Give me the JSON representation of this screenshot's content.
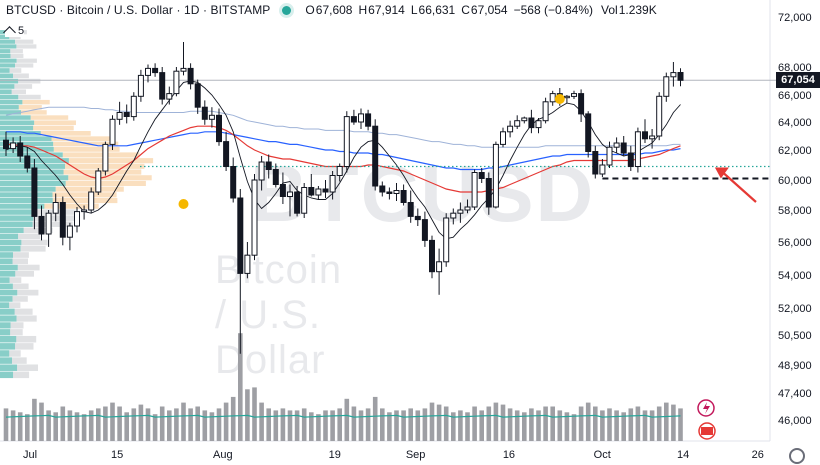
{
  "header": {
    "symbol": "BTCUSD · Bitcoin / U.S. Dollar · 1D · BITSTAMP",
    "o_label": "O",
    "o_value": "67,608",
    "h_label": "H",
    "h_value": "67,914",
    "l_label": "L",
    "l_value": "66,631",
    "c_label": "C",
    "c_value": "67,054",
    "change": "−568 (−0.84%)",
    "vol_label": "Vol",
    "vol_value": "1.239K"
  },
  "indicators_toggle": {
    "count": "5"
  },
  "watermark": {
    "symbol": "BTCUSD",
    "name": "Bitcoin / U.S. Dollar"
  },
  "last_price_label": "67,054",
  "colors": {
    "up": "#ffffff",
    "up_border": "#131722",
    "down": "#131722",
    "volume": "#9e9fa4",
    "ma_blue": "#2962ff",
    "ma_red": "#e53935",
    "ma_light": "#9fb3d8",
    "ma_black": "#131722",
    "vp_teal": "#26a69a",
    "vp_orange": "#f5c48a",
    "arrow": "#e53935",
    "volume_ma": "#26a69a"
  },
  "chart_data": {
    "type": "candlestick",
    "title": "BTCUSD · Bitcoin / U.S. Dollar · 1D · BITSTAMP",
    "ylim": [
      45000,
      73500
    ],
    "y_ticks": [
      72000,
      68000,
      66000,
      64000,
      62000,
      60000,
      58000,
      56000,
      54000,
      52000,
      50500,
      48900,
      47400,
      46000
    ],
    "y_tick_labels": [
      "72,000",
      "68,000",
      "66,000",
      "64,000",
      "62,000",
      "60,000",
      "58,000",
      "56,000",
      "54,000",
      "52,000",
      "50,500",
      "48,900",
      "47,400",
      "46,000"
    ],
    "x_tick_labels": [
      {
        "label": "Jul",
        "day": 1
      },
      {
        "label": "15",
        "day": 15
      },
      {
        "label": "Aug",
        "day": 32
      },
      {
        "label": "19",
        "day": 50
      },
      {
        "label": "Sep",
        "day": 63
      },
      {
        "label": "16",
        "day": 78
      },
      {
        "label": "Oct",
        "day": 93
      },
      {
        "label": "14",
        "day": 106
      },
      {
        "label": "26",
        "day": 118
      }
    ],
    "candles": [
      [
        62700,
        63300,
        61600,
        62100
      ],
      [
        62100,
        62900,
        61800,
        62500
      ],
      [
        62500,
        63000,
        61200,
        61600
      ],
      [
        61600,
        62200,
        60500,
        60800
      ],
      [
        60800,
        61400,
        56800,
        57600
      ],
      [
        57600,
        58300,
        56100,
        56500
      ],
      [
        56500,
        58000,
        55700,
        57800
      ],
      [
        57800,
        59100,
        57300,
        58500
      ],
      [
        58500,
        58900,
        55800,
        56300
      ],
      [
        56300,
        57200,
        55500,
        57000
      ],
      [
        57000,
        58200,
        56600,
        57900
      ],
      [
        57900,
        58300,
        57400,
        58000
      ],
      [
        58000,
        59500,
        57800,
        59200
      ],
      [
        59200,
        60800,
        59000,
        60600
      ],
      [
        60600,
        62600,
        60300,
        62400
      ],
      [
        62400,
        64500,
        62000,
        64200
      ],
      [
        64200,
        65500,
        63800,
        64700
      ],
      [
        64700,
        65300,
        63900,
        64400
      ],
      [
        64400,
        66200,
        64100,
        65900
      ],
      [
        65900,
        67800,
        65500,
        67400
      ],
      [
        67400,
        68200,
        66900,
        67900
      ],
      [
        67900,
        68300,
        67300,
        67600
      ],
      [
        67600,
        68000,
        65300,
        65700
      ],
      [
        65700,
        66600,
        65300,
        66100
      ],
      [
        66100,
        68000,
        65900,
        67700
      ],
      [
        67700,
        70000,
        67400,
        67900
      ],
      [
        67900,
        68300,
        66400,
        66800
      ],
      [
        66800,
        67100,
        64600,
        65100
      ],
      [
        65100,
        65600,
        63800,
        64200
      ],
      [
        64200,
        65100,
        63600,
        64500
      ],
      [
        64500,
        65000,
        62300,
        62600
      ],
      [
        62600,
        63300,
        60600,
        60900
      ],
      [
        60900,
        61500,
        58500,
        58800
      ],
      [
        58800,
        59400,
        49500,
        54100
      ],
      [
        54100,
        56000,
        53800,
        55200
      ],
      [
        55200,
        60400,
        54900,
        60000
      ],
      [
        60000,
        61600,
        59300,
        61200
      ],
      [
        61200,
        61700,
        60100,
        60700
      ],
      [
        60700,
        61100,
        59500,
        59700
      ],
      [
        59700,
        60500,
        58400,
        58900
      ],
      [
        58900,
        59700,
        57600,
        59200
      ],
      [
        59200,
        59600,
        57600,
        57800
      ],
      [
        57800,
        59800,
        57500,
        59500
      ],
      [
        59500,
        60400,
        58900,
        59000
      ],
      [
        59000,
        59600,
        58700,
        59400
      ],
      [
        59400,
        60000,
        58800,
        59200
      ],
      [
        59200,
        60600,
        58700,
        60300
      ],
      [
        60300,
        61100,
        59900,
        60900
      ],
      [
        60900,
        64800,
        60500,
        64400
      ],
      [
        64400,
        64900,
        63800,
        64000
      ],
      [
        64000,
        65000,
        63500,
        64600
      ],
      [
        64600,
        64900,
        63400,
        63700
      ],
      [
        63700,
        64200,
        59300,
        59600
      ],
      [
        59600,
        59900,
        58900,
        59200
      ],
      [
        59200,
        59500,
        58700,
        59100
      ],
      [
        59100,
        59800,
        58600,
        59300
      ],
      [
        59300,
        59700,
        58300,
        58500
      ],
      [
        58500,
        59300,
        57200,
        57600
      ],
      [
        57600,
        58100,
        57000,
        57400
      ],
      [
        57400,
        57900,
        55700,
        56100
      ],
      [
        56100,
        56400,
        53800,
        54200
      ],
      [
        54200,
        55600,
        52800,
        54800
      ],
      [
        54800,
        57800,
        54500,
        57500
      ],
      [
        57500,
        58100,
        57100,
        57800
      ],
      [
        57800,
        58500,
        57200,
        58000
      ],
      [
        58000,
        58700,
        57800,
        58200
      ],
      [
        58200,
        60700,
        58000,
        60500
      ],
      [
        60500,
        60800,
        59800,
        60100
      ],
      [
        60100,
        60500,
        57700,
        58200
      ],
      [
        58200,
        62600,
        58100,
        62400
      ],
      [
        62400,
        63600,
        62200,
        63300
      ],
      [
        63300,
        64100,
        62900,
        63700
      ],
      [
        63700,
        64500,
        63500,
        64100
      ],
      [
        64100,
        64400,
        63900,
        64300
      ],
      [
        64300,
        64900,
        63200,
        63600
      ],
      [
        63600,
        64300,
        63200,
        64100
      ],
      [
        64100,
        65800,
        63900,
        65500
      ],
      [
        65500,
        66300,
        65200,
        66100
      ],
      [
        66100,
        66500,
        65200,
        65800
      ],
      [
        65800,
        66000,
        65400,
        65900
      ],
      [
        65900,
        66300,
        65700,
        66100
      ],
      [
        66100,
        66400,
        64000,
        64600
      ],
      [
        64600,
        64800,
        61500,
        61900
      ],
      [
        61900,
        62300,
        60100,
        60400
      ],
      [
        60400,
        61400,
        60200,
        61000
      ],
      [
        61000,
        62600,
        60800,
        62200
      ],
      [
        62200,
        62900,
        61800,
        62500
      ],
      [
        62500,
        63000,
        61600,
        61800
      ],
      [
        61800,
        62300,
        60600,
        60900
      ],
      [
        60900,
        63600,
        60500,
        63300
      ],
      [
        63300,
        64200,
        62500,
        62800
      ],
      [
        62800,
        63500,
        62100,
        63000
      ],
      [
        63000,
        66200,
        62700,
        65900
      ],
      [
        65900,
        67600,
        65500,
        67300
      ],
      [
        67300,
        68400,
        66600,
        67600
      ],
      [
        67608,
        67914,
        66631,
        67054
      ]
    ],
    "volume": [
      46600,
      46500,
      46400,
      46300,
      47100,
      46900,
      46500,
      46400,
      46700,
      46500,
      46400,
      46300,
      46500,
      46600,
      46700,
      46900,
      46700,
      46400,
      46600,
      46800,
      46600,
      46300,
      46700,
      46500,
      46600,
      46900,
      46600,
      46700,
      46500,
      46400,
      46600,
      46900,
      47200,
      50600,
      47600,
      47700,
      46900,
      46600,
      46500,
      46600,
      46500,
      46500,
      46600,
      46400,
      46300,
      46500,
      46500,
      46600,
      47100,
      46700,
      46500,
      46600,
      47200,
      46600,
      46400,
      46500,
      46500,
      46600,
      46500,
      46600,
      46900,
      46800,
      46700,
      46400,
      46500,
      46400,
      46700,
      46500,
      46700,
      46900,
      46800,
      46600,
      46500,
      46400,
      46600,
      46500,
      46700,
      46700,
      46500,
      46400,
      46300,
      46700,
      46900,
      46700,
      46500,
      46600,
      46500,
      46400,
      46600,
      46700,
      46500,
      46500,
      46700,
      46900,
      46800,
      46600
    ],
    "ma_black": [
      62000,
      62200,
      62300,
      62200,
      61900,
      61300,
      60800,
      60300,
      59700,
      59000,
      58400,
      57900,
      57800,
      58000,
      58400,
      59000,
      59800,
      60600,
      61300,
      62300,
      63300,
      64200,
      64900,
      65600,
      66300,
      66900,
      67000,
      66900,
      66500,
      66000,
      65300,
      64500,
      63300,
      61500,
      59900,
      58700,
      58100,
      58500,
      59100,
      59800,
      59900,
      59300,
      59000,
      58800,
      58700,
      58700,
      59100,
      59800,
      60600,
      61500,
      62200,
      62600,
      62700,
      62200,
      61600,
      61000,
      60300,
      59500,
      58800,
      58200,
      57400,
      56600,
      56200,
      56300,
      56800,
      57200,
      57700,
      58300,
      58800,
      59400,
      60300,
      61300,
      62200,
      63100,
      63800,
      64200,
      64400,
      64700,
      65100,
      65400,
      65300,
      64800,
      64000,
      63100,
      62400,
      62000,
      61800,
      61600,
      61700,
      61900,
      62200,
      62500,
      63100,
      63800,
      64700,
      65300
    ],
    "ma_red": [
      62400,
      62400,
      62300,
      62300,
      62200,
      62000,
      61800,
      61600,
      61300,
      61000,
      60700,
      60400,
      60200,
      60100,
      60200,
      60400,
      60700,
      61000,
      61300,
      61700,
      62100,
      62400,
      62700,
      63000,
      63200,
      63400,
      63600,
      63700,
      63700,
      63700,
      63600,
      63400,
      63100,
      62700,
      62300,
      62000,
      61800,
      61600,
      61500,
      61400,
      61400,
      61300,
      61200,
      61100,
      61000,
      60900,
      60900,
      60900,
      60900,
      60900,
      60900,
      61000,
      61000,
      60900,
      60800,
      60700,
      60600,
      60400,
      60200,
      60000,
      59800,
      59600,
      59400,
      59300,
      59200,
      59200,
      59200,
      59200,
      59300,
      59400,
      59500,
      59700,
      59900,
      60100,
      60300,
      60500,
      60700,
      60900,
      61000,
      61200,
      61300,
      61300,
      61300,
      61300,
      61300,
      61300,
      61300,
      61300,
      61300,
      61400,
      61500,
      61600,
      61700,
      61900,
      62100,
      62300
    ],
    "ma_blue": [
      63300,
      63300,
      63300,
      63200,
      63200,
      63100,
      63000,
      62900,
      62800,
      62700,
      62600,
      62500,
      62400,
      62300,
      62300,
      62300,
      62300,
      62300,
      62400,
      62500,
      62600,
      62700,
      62800,
      62900,
      63000,
      63100,
      63200,
      63200,
      63300,
      63300,
      63300,
      63200,
      63100,
      63000,
      62900,
      62800,
      62700,
      62600,
      62600,
      62500,
      62400,
      62400,
      62300,
      62200,
      62100,
      62000,
      62000,
      61900,
      61900,
      61800,
      61800,
      61800,
      61700,
      61700,
      61600,
      61500,
      61400,
      61300,
      61200,
      61100,
      61000,
      60900,
      60800,
      60800,
      60700,
      60700,
      60700,
      60700,
      60800,
      60800,
      60900,
      61000,
      61100,
      61200,
      61300,
      61400,
      61500,
      61600,
      61600,
      61700,
      61700,
      61700,
      61700,
      61700,
      61700,
      61700,
      61700,
      61700,
      61700,
      61700,
      61800,
      61800,
      61900,
      62000,
      62000,
      62100
    ],
    "ma_light": [
      64500,
      64600,
      64700,
      64800,
      64900,
      65000,
      65100,
      65100,
      65100,
      65100,
      65100,
      65100,
      65000,
      65000,
      64900,
      64900,
      64800,
      64800,
      64700,
      64700,
      64700,
      64700,
      64700,
      64700,
      64700,
      64700,
      64800,
      64800,
      64800,
      64800,
      64700,
      64600,
      64500,
      64300,
      64100,
      64000,
      63900,
      63800,
      63700,
      63700,
      63600,
      63600,
      63500,
      63500,
      63500,
      63400,
      63400,
      63400,
      63400,
      63300,
      63300,
      63300,
      63200,
      63200,
      63100,
      63100,
      63000,
      62900,
      62800,
      62700,
      62600,
      62600,
      62500,
      62400,
      62400,
      62300,
      62300,
      62200,
      62200,
      62200,
      62200,
      62200,
      62200,
      62200,
      62200,
      62200,
      62300,
      62300,
      62300,
      62300,
      62300,
      62300,
      62300,
      62300,
      62300,
      62300,
      62300,
      62300,
      62300,
      62300,
      62300,
      62300,
      62300,
      62300,
      62400,
      62400
    ],
    "support_level": 60100,
    "dotted_level": 60900,
    "markers": [
      {
        "index": 25,
        "price": 58400
      },
      {
        "index": 78,
        "price": 65700
      }
    ],
    "arrow_target": {
      "index": 99,
      "price": 61100
    }
  }
}
